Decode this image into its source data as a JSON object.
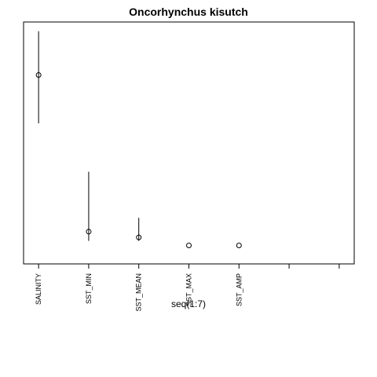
{
  "chart_data": {
    "type": "scatter",
    "title": "Oncorhynchus kisutch",
    "xlabel": "seq(1:7)",
    "ylabel": "",
    "xlim": [
      0.7,
      7.3
    ],
    "ylim": [
      -0.05,
      1.0
    ],
    "x_ticks": [
      1,
      2,
      3,
      4,
      5,
      6,
      7
    ],
    "categories": [
      "SALINITY",
      "SST_MIN",
      "SST_MEAN",
      "SST_MAX",
      "SST_AMP",
      "",
      ""
    ],
    "series": [
      {
        "values": [
          0.77,
          0.09,
          0.065,
          0.03,
          0.03,
          null,
          null
        ],
        "lower": [
          0.56,
          0.05,
          0.05,
          0.03,
          0.03,
          null,
          null
        ],
        "upper": [
          0.96,
          0.35,
          0.15,
          0.03,
          0.03,
          null,
          null
        ]
      }
    ],
    "grid": false,
    "marker": "open-circle"
  }
}
